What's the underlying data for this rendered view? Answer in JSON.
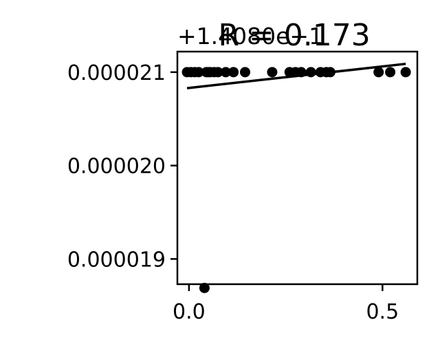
{
  "chart_data": {
    "type": "scatter",
    "title": "R = 0.173",
    "offset_label": "+1.4080e−1",
    "xlabel": "",
    "ylabel": "",
    "xlim": [
      -0.03,
      0.59
    ],
    "ylim": [
      1.873e-05,
      2.122e-05
    ],
    "x_ticks": [
      {
        "value": 0.0,
        "label": "0.0"
      },
      {
        "value": 0.5,
        "label": "0.5"
      }
    ],
    "y_ticks": [
      {
        "value": 1.9e-05,
        "label": "0.000019"
      },
      {
        "value": 2e-05,
        "label": "0.000020"
      },
      {
        "value": 2.1e-05,
        "label": "0.000021"
      }
    ],
    "grid": false,
    "legend": "none",
    "point_color": "#000000",
    "line_color": "#000000",
    "series": [
      {
        "points": [
          [
            -0.005,
            2.1e-05
          ],
          [
            0.005,
            2.1e-05
          ],
          [
            0.015,
            2.1e-05
          ],
          [
            0.025,
            2.1e-05
          ],
          [
            0.045,
            2.1e-05
          ],
          [
            0.05,
            2.1e-05
          ],
          [
            0.055,
            2.1e-05
          ],
          [
            0.065,
            2.1e-05
          ],
          [
            0.075,
            2.1e-05
          ],
          [
            0.095,
            2.1e-05
          ],
          [
            0.115,
            2.1e-05
          ],
          [
            0.145,
            2.1e-05
          ],
          [
            0.215,
            2.1e-05
          ],
          [
            0.26,
            2.1e-05
          ],
          [
            0.275,
            2.1e-05
          ],
          [
            0.29,
            2.1e-05
          ],
          [
            0.315,
            2.1e-05
          ],
          [
            0.34,
            2.1e-05
          ],
          [
            0.355,
            2.1e-05
          ],
          [
            0.365,
            2.1e-05
          ],
          [
            0.49,
            2.1e-05
          ],
          [
            0.52,
            2.1e-05
          ],
          [
            0.56,
            2.1e-05
          ],
          [
            0.04,
            1.86896e-05
          ]
        ]
      }
    ],
    "fit_line": {
      "x": [
        -0.005,
        0.56
      ],
      "y": [
        2.08288e-05,
        2.10887e-05
      ]
    }
  }
}
